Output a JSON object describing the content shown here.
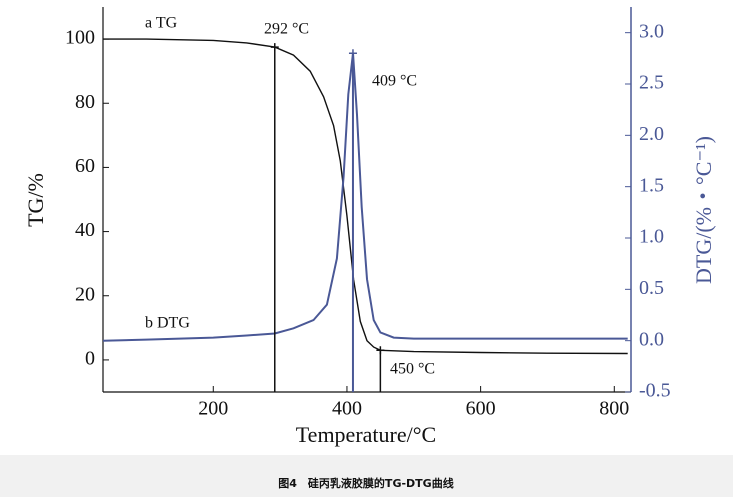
{
  "chart_data": {
    "type": "line",
    "caption": "图4　硅丙乳液胶膜的TG-DTG曲线",
    "xlabel": "Temperature/°C",
    "ylabel": "TG/%",
    "y2label": "DTG/(%・°C⁻¹)",
    "xlim": [
      35,
      825
    ],
    "xticks": [
      200,
      400,
      600,
      800
    ],
    "ylim": [
      -10,
      110
    ],
    "yticks": [
      0,
      20,
      40,
      60,
      80,
      100
    ],
    "y2lim": [
      -0.5,
      3.25
    ],
    "y2ticks": [
      -0.5,
      {
        "value": 0,
        "label": "0.0"
      },
      0.5,
      {
        "value": 1,
        "label": "1.0"
      },
      1.5,
      {
        "value": 2,
        "label": "2.0"
      },
      2.5,
      {
        "value": 3,
        "label": "3.0"
      }
    ],
    "series": [
      {
        "name": "a TG",
        "color": "#111111",
        "x": [
          35,
          100,
          200,
          250,
          292,
          320,
          345,
          365,
          380,
          390,
          400,
          410,
          420,
          430,
          440,
          450,
          500,
          600,
          700,
          820
        ],
        "values": [
          100,
          100,
          99.6,
          98.8,
          97.5,
          95,
          90,
          82,
          73,
          62,
          45,
          25,
          12,
          6,
          4,
          3,
          2.6,
          2.3,
          2.1,
          2
        ]
      },
      {
        "name": "b DTG",
        "color": "#4a5896",
        "axis": "y2",
        "x": [
          35,
          100,
          200,
          250,
          292,
          320,
          350,
          370,
          385,
          395,
          402,
          409,
          415,
          422,
          430,
          440,
          450,
          470,
          500,
          600,
          700,
          820
        ],
        "values": [
          0.0,
          0.01,
          0.03,
          0.05,
          0.07,
          0.12,
          0.2,
          0.35,
          0.8,
          1.6,
          2.4,
          2.8,
          2.2,
          1.3,
          0.6,
          0.2,
          0.08,
          0.03,
          0.02,
          0.02,
          0.02,
          0.02
        ]
      }
    ],
    "annotations": [
      {
        "x": 292,
        "label": "292 °C"
      },
      {
        "x": 409,
        "label": "409 °C"
      },
      {
        "x": 450,
        "label": "450 °C"
      }
    ]
  }
}
